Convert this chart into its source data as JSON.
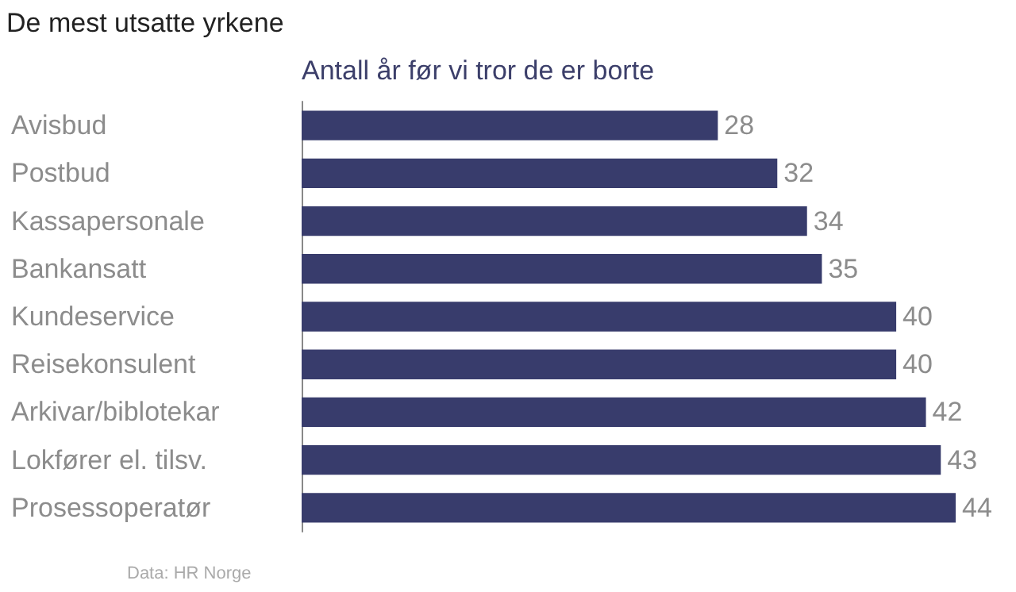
{
  "chart_data": {
    "type": "bar",
    "orientation": "horizontal",
    "title": "De mest utsatte yrkene",
    "subtitle": "Antall år før vi tror de er borte",
    "categories": [
      "Avisbud",
      "Postbud",
      "Kassapersonale",
      "Bankansatt",
      "Kundeservice",
      "Reisekonsulent",
      "Arkivar/biblotekar",
      "Lokfører el. tilsv.",
      "Prosessoperatør"
    ],
    "values": [
      28,
      32,
      34,
      35,
      40,
      40,
      42,
      43,
      44
    ],
    "color": "#383c6c",
    "data_labels": true,
    "annotations": [
      "Data: HR Norge"
    ]
  }
}
